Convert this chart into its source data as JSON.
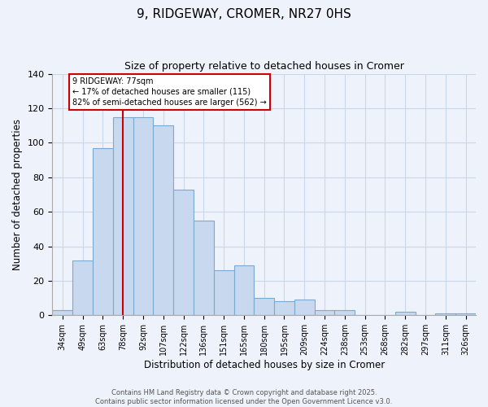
{
  "title": "9, RIDGEWAY, CROMER, NR27 0HS",
  "subtitle": "Size of property relative to detached houses in Cromer",
  "xlabel": "Distribution of detached houses by size in Cromer",
  "ylabel": "Number of detached properties",
  "bar_color": "#c8d8ee",
  "bar_edge_color": "#7aaad0",
  "categories": [
    "34sqm",
    "49sqm",
    "63sqm",
    "78sqm",
    "92sqm",
    "107sqm",
    "122sqm",
    "136sqm",
    "151sqm",
    "165sqm",
    "180sqm",
    "195sqm",
    "209sqm",
    "224sqm",
    "238sqm",
    "253sqm",
    "268sqm",
    "282sqm",
    "297sqm",
    "311sqm",
    "326sqm"
  ],
  "values": [
    3,
    32,
    97,
    115,
    115,
    110,
    73,
    55,
    26,
    29,
    10,
    8,
    9,
    3,
    3,
    0,
    0,
    2,
    0,
    1,
    1
  ],
  "ylim": [
    0,
    140
  ],
  "yticks": [
    0,
    20,
    40,
    60,
    80,
    100,
    120,
    140
  ],
  "annotation_line1": "9 RIDGEWAY: 77sqm",
  "annotation_line2": "← 17% of detached houses are smaller (115)",
  "annotation_line3": "82% of semi-detached houses are larger (562) →",
  "vline_index": 3,
  "vline_color": "#cc0000",
  "grid_color": "#c8d8ec",
  "background_color": "#eef2fa",
  "footer_line1": "Contains HM Land Registry data © Crown copyright and database right 2025.",
  "footer_line2": "Contains public sector information licensed under the Open Government Licence v3.0."
}
